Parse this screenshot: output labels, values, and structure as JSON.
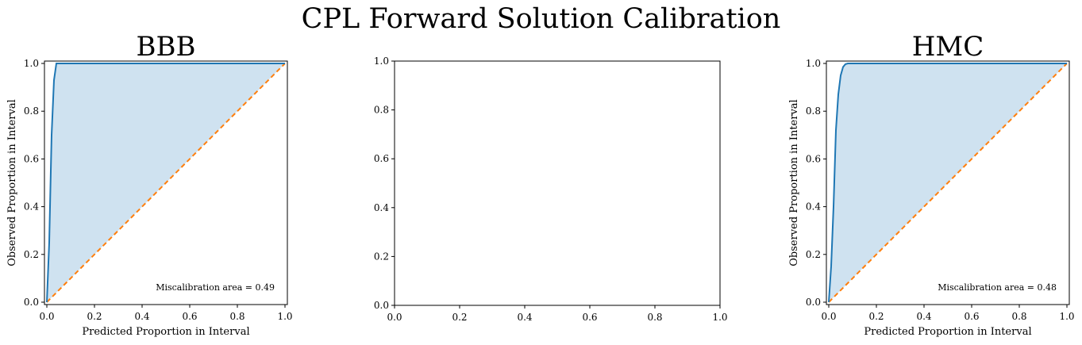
{
  "figure": {
    "suptitle": "CPL Forward Solution Calibration"
  },
  "colors": {
    "curve": "#1f77b4",
    "fill": "#cfe2f0",
    "ideal": "#ff7f0e",
    "axis": "#000000"
  },
  "chart_data": [
    {
      "type": "line",
      "title": "BBB",
      "xlabel": "Predicted Proportion in Interval",
      "ylabel": "Observed Proportion in Interval",
      "xlim": [
        0,
        1
      ],
      "ylim": [
        0,
        1
      ],
      "xticks": [
        "0.0",
        "0.2",
        "0.4",
        "0.6",
        "0.8",
        "1.0"
      ],
      "yticks": [
        "0.0",
        "0.2",
        "0.4",
        "0.6",
        "0.8",
        "1.0"
      ],
      "annotation": "Miscalibration area = 0.49",
      "series": [
        {
          "name": "calibration curve",
          "x": [
            0.0,
            0.01,
            0.02,
            0.03,
            0.04,
            0.05,
            1.0
          ],
          "y": [
            0.0,
            0.25,
            0.7,
            0.93,
            1.0,
            1.0,
            1.0
          ]
        },
        {
          "name": "ideal",
          "style": "dashed",
          "x": [
            0.0,
            1.0
          ],
          "y": [
            0.0,
            1.0
          ]
        }
      ],
      "fill_between": true
    },
    {
      "type": "line",
      "title": "",
      "xlabel": "",
      "ylabel": "",
      "xlim": [
        0,
        1
      ],
      "ylim": [
        0,
        1
      ],
      "xticks": [
        "0.0",
        "0.2",
        "0.4",
        "0.6",
        "0.8",
        "1.0"
      ],
      "yticks": [
        "0.0",
        "0.2",
        "0.4",
        "0.6",
        "0.8",
        "1.0"
      ],
      "annotation": "",
      "series": [],
      "fill_between": false
    },
    {
      "type": "line",
      "title": "HMC",
      "xlabel": "Predicted Proportion in Interval",
      "ylabel": "Observed Proportion in Interval",
      "xlim": [
        0,
        1
      ],
      "ylim": [
        0,
        1
      ],
      "xticks": [
        "0.0",
        "0.2",
        "0.4",
        "0.6",
        "0.8",
        "1.0"
      ],
      "yticks": [
        "0.0",
        "0.2",
        "0.4",
        "0.6",
        "0.8",
        "1.0"
      ],
      "annotation": "Miscalibration area = 0.48",
      "series": [
        {
          "name": "calibration curve",
          "x": [
            0.0,
            0.01,
            0.02,
            0.03,
            0.04,
            0.05,
            0.06,
            0.07,
            0.08,
            0.09,
            1.0
          ],
          "y": [
            0.0,
            0.15,
            0.4,
            0.72,
            0.87,
            0.95,
            0.985,
            0.997,
            1.0,
            1.0,
            1.0
          ]
        },
        {
          "name": "ideal",
          "style": "dashed",
          "x": [
            0.0,
            1.0
          ],
          "y": [
            0.0,
            1.0
          ]
        }
      ],
      "fill_between": true
    }
  ]
}
